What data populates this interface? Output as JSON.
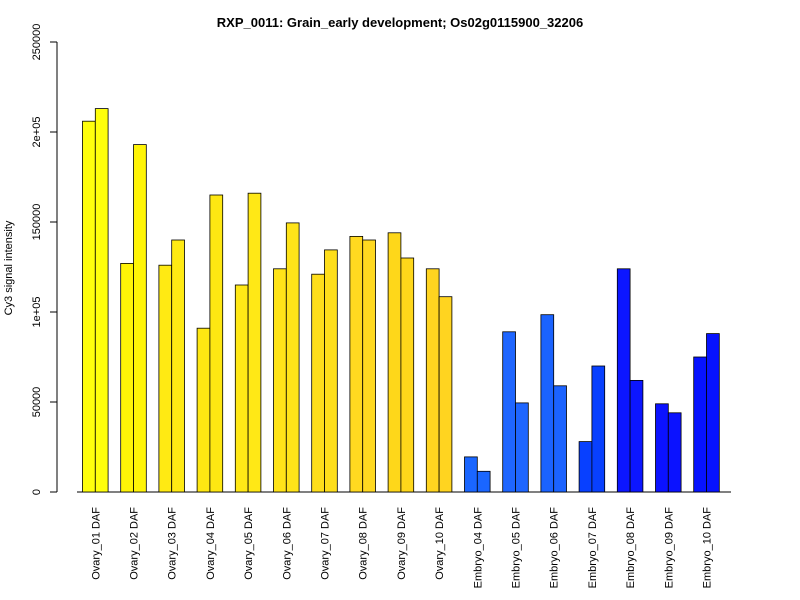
{
  "chart_data": {
    "type": "bar",
    "title": "RXP_0011: Grain_early development; Os02g0115900_32206",
    "xlabel": "",
    "ylabel": "Cy3 signal intensity",
    "ylim": [
      0,
      250000
    ],
    "yticks": [
      0,
      50000,
      100000,
      150000,
      200000,
      250000
    ],
    "ytick_labels": [
      "0",
      "50000",
      "1e+05",
      "150000",
      "2e+05",
      "250000"
    ],
    "grid": false,
    "categories": [
      "Ovary_01 DAF",
      "Ovary_02 DAF",
      "Ovary_03 DAF",
      "Ovary_04 DAF",
      "Ovary_05 DAF",
      "Ovary_06 DAF",
      "Ovary_07 DAF",
      "Ovary_08 DAF",
      "Ovary_09 DAF",
      "Ovary_10 DAF",
      "Embryo_04 DAF",
      "Embryo_05 DAF",
      "Embryo_06 DAF",
      "Embryo_07 DAF",
      "Embryo_08 DAF",
      "Embryo_09 DAF",
      "Embryo_10 DAF"
    ],
    "series": [
      {
        "values": [
          206000,
          127000,
          126000,
          91000,
          115000,
          124000,
          121000,
          142000,
          144000,
          124000,
          19500,
          89000,
          98500,
          28000,
          124000,
          49000,
          75000
        ]
      },
      {
        "values": [
          213000,
          193000,
          140000,
          165000,
          166000,
          149500,
          134500,
          140000,
          130000,
          108500,
          11500,
          49500,
          59000,
          70000,
          62000,
          44000,
          88000
        ]
      }
    ],
    "colors": [
      "#FFFF0C",
      "#FFF407",
      "#FFEA13",
      "#FEE712",
      "#FFE816",
      "#FFE419",
      "#FEDE1B",
      "#FFD920",
      "#FED71A",
      "#FFD420",
      "#1A66FF",
      "#1F66FF",
      "#1B63FF",
      "#0840FF",
      "#0C16FF",
      "#0B12FF",
      "#0713FF"
    ]
  }
}
